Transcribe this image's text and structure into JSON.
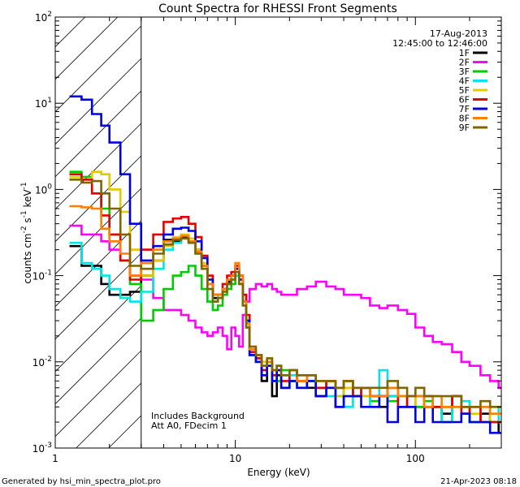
{
  "chart_data": {
    "type": "line",
    "title": "Count Spectra for RHESSI Front Segments",
    "xlabel": "Energy (keV)",
    "ylabel": "counts cm^-2 s^-1 keV^-1",
    "xscale": "log",
    "yscale": "log",
    "xlim": [
      1,
      300
    ],
    "ylim": [
      0.001,
      100
    ],
    "x_ticks": [
      {
        "value": 1,
        "label": "1"
      },
      {
        "value": 10,
        "label": "10"
      },
      {
        "value": 100,
        "label": "100"
      }
    ],
    "y_ticks": [
      {
        "value": 0.001,
        "base": "10",
        "exp": "-3"
      },
      {
        "value": 0.01,
        "base": "10",
        "exp": "-2"
      },
      {
        "value": 0.1,
        "base": "10",
        "exp": "-1"
      },
      {
        "value": 1,
        "base": "10",
        "exp": "0"
      },
      {
        "value": 10,
        "base": "10",
        "exp": "1"
      },
      {
        "value": 100,
        "base": "10",
        "exp": "2"
      }
    ],
    "hatched_region": {
      "from": 1,
      "to": 3
    },
    "date": "17-Aug-2013",
    "time_range": "12:45:00 to 12:46:00",
    "annotations": [
      "Includes Background",
      "Att A0, FDecim 1"
    ],
    "footer_left": "Generated by hsi_min_spectra_plot.pro",
    "footer_right": "21-Apr-2023 08:18",
    "series": [
      {
        "name": "1F",
        "color": "#000000",
        "x": [
          1.2,
          1.4,
          1.6,
          1.8,
          2.0,
          2.3,
          2.6,
          3.0,
          3.5,
          4.0,
          4.5,
          5.0,
          5.5,
          6.0,
          6.5,
          7.0,
          7.5,
          8.0,
          8.5,
          9.0,
          9.5,
          10.0,
          10.5,
          11.0,
          11.5,
          12.0,
          13.0,
          14.0,
          15.0,
          16.0,
          17.0,
          18.0,
          20.0,
          22.0,
          25.0,
          28.0,
          32.0,
          36.0,
          40.0,
          45.0,
          50.0,
          56.0,
          63.0,
          70.0,
          80.0,
          90.0,
          100.0,
          112.0,
          125.0,
          140.0,
          160.0,
          180.0,
          200.0,
          230.0,
          260.0,
          290.0
        ],
        "y": [
          0.22,
          0.13,
          0.13,
          0.08,
          0.06,
          0.06,
          0.065,
          0.1,
          0.15,
          0.26,
          0.25,
          0.28,
          0.25,
          0.2,
          0.13,
          0.08,
          0.055,
          0.055,
          0.07,
          0.085,
          0.1,
          0.12,
          0.1,
          0.06,
          0.03,
          0.012,
          0.01,
          0.006,
          0.01,
          0.004,
          0.007,
          0.005,
          0.006,
          0.006,
          0.005,
          0.004,
          0.006,
          0.003,
          0.005,
          0.004,
          0.005,
          0.004,
          0.003,
          0.004,
          0.004,
          0.003,
          0.003,
          0.004,
          0.003,
          0.0025,
          0.004,
          0.003,
          0.002,
          0.0025,
          0.002,
          0.0015
        ]
      },
      {
        "name": "2F",
        "color": "#ff00ff",
        "x": [
          1.2,
          1.4,
          1.6,
          1.8,
          2.0,
          2.3,
          2.6,
          3.0,
          3.5,
          4.0,
          4.5,
          5.0,
          5.5,
          6.0,
          6.5,
          7.0,
          7.5,
          8.0,
          8.5,
          9.0,
          9.5,
          10.0,
          10.5,
          11.0,
          11.5,
          12.0,
          13.0,
          14.0,
          15.0,
          16.0,
          17.0,
          18.0,
          20.0,
          22.0,
          25.0,
          28.0,
          32.0,
          36.0,
          40.0,
          45.0,
          50.0,
          56.0,
          63.0,
          70.0,
          80.0,
          90.0,
          100.0,
          112.0,
          125.0,
          140.0,
          160.0,
          180.0,
          200.0,
          230.0,
          260.0,
          290.0
        ],
        "y": [
          0.38,
          0.3,
          0.3,
          0.25,
          0.2,
          0.15,
          0.1,
          0.09,
          0.055,
          0.04,
          0.04,
          0.035,
          0.03,
          0.025,
          0.022,
          0.02,
          0.022,
          0.025,
          0.02,
          0.014,
          0.025,
          0.02,
          0.015,
          0.035,
          0.05,
          0.07,
          0.08,
          0.075,
          0.08,
          0.07,
          0.065,
          0.06,
          0.06,
          0.07,
          0.075,
          0.085,
          0.075,
          0.07,
          0.06,
          0.06,
          0.055,
          0.045,
          0.042,
          0.045,
          0.04,
          0.036,
          0.025,
          0.02,
          0.017,
          0.016,
          0.013,
          0.01,
          0.009,
          0.007,
          0.006,
          0.005
        ]
      },
      {
        "name": "3F",
        "color": "#00cc00",
        "x": [
          1.2,
          1.4,
          1.6,
          1.8,
          2.0,
          2.3,
          2.6,
          3.0,
          3.5,
          4.0,
          4.5,
          5.0,
          5.5,
          6.0,
          6.5,
          7.0,
          7.5,
          8.0,
          8.5,
          9.0,
          9.5,
          10.0,
          10.5,
          11.0,
          11.5,
          12.0,
          13.0,
          14.0,
          15.0,
          16.0,
          17.0,
          18.0,
          20.0,
          22.0,
          25.0,
          28.0,
          32.0,
          36.0,
          40.0,
          45.0,
          50.0,
          56.0,
          63.0,
          70.0,
          80.0,
          90.0,
          100.0,
          112.0,
          125.0,
          140.0,
          160.0,
          180.0,
          200.0,
          230.0,
          260.0,
          290.0
        ],
        "y": [
          1.6,
          1.4,
          0.9,
          0.6,
          0.3,
          0.15,
          0.08,
          0.03,
          0.04,
          0.07,
          0.1,
          0.11,
          0.13,
          0.1,
          0.07,
          0.05,
          0.04,
          0.045,
          0.06,
          0.07,
          0.08,
          0.1,
          0.08,
          0.05,
          0.025,
          0.014,
          0.011,
          0.009,
          0.01,
          0.007,
          0.006,
          0.008,
          0.006,
          0.007,
          0.006,
          0.005,
          0.005,
          0.004,
          0.006,
          0.004,
          0.005,
          0.0035,
          0.004,
          0.0035,
          0.003,
          0.004,
          0.003,
          0.0035,
          0.003,
          0.002,
          0.003,
          0.0025,
          0.002,
          0.003,
          0.002,
          0.002
        ]
      },
      {
        "name": "4F",
        "color": "#00e5e5",
        "x": [
          1.2,
          1.4,
          1.6,
          1.8,
          2.0,
          2.3,
          2.6,
          3.0,
          3.5,
          4.0,
          4.5,
          5.0,
          5.5,
          6.0,
          6.5,
          7.0,
          7.5,
          8.0,
          8.5,
          9.0,
          9.5,
          10.0,
          10.5,
          11.0,
          11.5,
          12.0,
          13.0,
          14.0,
          15.0,
          16.0,
          17.0,
          18.0,
          20.0,
          22.0,
          25.0,
          28.0,
          32.0,
          36.0,
          40.0,
          45.0,
          50.0,
          56.0,
          63.0,
          70.0,
          80.0,
          90.0,
          100.0,
          112.0,
          125.0,
          140.0,
          160.0,
          180.0,
          200.0,
          230.0,
          260.0,
          290.0
        ],
        "y": [
          0.24,
          0.14,
          0.12,
          0.1,
          0.07,
          0.055,
          0.05,
          0.065,
          0.12,
          0.2,
          0.24,
          0.27,
          0.25,
          0.18,
          0.12,
          0.07,
          0.05,
          0.06,
          0.07,
          0.08,
          0.09,
          0.1,
          0.09,
          0.05,
          0.025,
          0.012,
          0.01,
          0.008,
          0.009,
          0.006,
          0.008,
          0.005,
          0.007,
          0.005,
          0.006,
          0.005,
          0.004,
          0.005,
          0.003,
          0.005,
          0.004,
          0.003,
          0.008,
          0.004,
          0.004,
          0.003,
          0.005,
          0.003,
          0.003,
          0.002,
          0.003,
          0.0035,
          0.002,
          0.002,
          0.003,
          0.002
        ]
      },
      {
        "name": "5F",
        "color": "#e5c800",
        "x": [
          1.2,
          1.4,
          1.6,
          1.8,
          2.0,
          2.3,
          2.6,
          3.0,
          3.5,
          4.0,
          4.5,
          5.0,
          5.5,
          6.0,
          6.5,
          7.0,
          7.5,
          8.0,
          8.5,
          9.0,
          9.5,
          10.0,
          10.5,
          11.0,
          11.5,
          12.0,
          13.0,
          14.0,
          15.0,
          16.0,
          17.0,
          18.0,
          20.0,
          22.0,
          25.0,
          28.0,
          32.0,
          36.0,
          40.0,
          45.0,
          50.0,
          56.0,
          63.0,
          70.0,
          80.0,
          90.0,
          100.0,
          112.0,
          125.0,
          140.0,
          160.0,
          180.0,
          200.0,
          230.0,
          260.0,
          290.0
        ],
        "y": [
          1.4,
          1.3,
          1.6,
          1.5,
          1.0,
          0.55,
          0.2,
          0.1,
          0.15,
          0.22,
          0.28,
          0.3,
          0.27,
          0.2,
          0.14,
          0.08,
          0.06,
          0.06,
          0.07,
          0.09,
          0.1,
          0.11,
          0.09,
          0.05,
          0.03,
          0.015,
          0.012,
          0.01,
          0.011,
          0.008,
          0.009,
          0.007,
          0.008,
          0.006,
          0.007,
          0.005,
          0.006,
          0.004,
          0.005,
          0.005,
          0.004,
          0.004,
          0.004,
          0.005,
          0.004,
          0.003,
          0.004,
          0.003,
          0.003,
          0.003,
          0.003,
          0.003,
          0.0025,
          0.003,
          0.002,
          0.002
        ]
      },
      {
        "name": "6F",
        "color": "#e50000",
        "x": [
          1.2,
          1.4,
          1.6,
          1.8,
          2.0,
          2.3,
          2.6,
          3.0,
          3.5,
          4.0,
          4.5,
          5.0,
          5.5,
          6.0,
          6.5,
          7.0,
          7.5,
          8.0,
          8.5,
          9.0,
          9.5,
          10.0,
          10.5,
          11.0,
          11.5,
          12.0,
          13.0,
          14.0,
          15.0,
          16.0,
          17.0,
          18.0,
          20.0,
          22.0,
          25.0,
          28.0,
          32.0,
          36.0,
          40.0,
          45.0,
          50.0,
          56.0,
          63.0,
          70.0,
          80.0,
          90.0,
          100.0,
          112.0,
          125.0,
          140.0,
          160.0,
          180.0,
          200.0,
          230.0,
          260.0,
          290.0
        ],
        "y": [
          1.5,
          1.3,
          0.9,
          0.5,
          0.3,
          0.15,
          0.09,
          0.2,
          0.3,
          0.42,
          0.46,
          0.48,
          0.4,
          0.28,
          0.17,
          0.1,
          0.06,
          0.06,
          0.08,
          0.1,
          0.11,
          0.13,
          0.1,
          0.06,
          0.035,
          0.013,
          0.011,
          0.008,
          0.01,
          0.007,
          0.009,
          0.006,
          0.008,
          0.006,
          0.007,
          0.005,
          0.006,
          0.005,
          0.006,
          0.004,
          0.005,
          0.004,
          0.004,
          0.005,
          0.003,
          0.004,
          0.004,
          0.003,
          0.003,
          0.003,
          0.004,
          0.0025,
          0.003,
          0.002,
          0.002,
          0.002
        ]
      },
      {
        "name": "7F",
        "color": "#0000e5",
        "x": [
          1.2,
          1.4,
          1.6,
          1.8,
          2.0,
          2.3,
          2.6,
          3.0,
          3.5,
          4.0,
          4.5,
          5.0,
          5.5,
          6.0,
          6.5,
          7.0,
          7.5,
          8.0,
          8.5,
          9.0,
          9.5,
          10.0,
          10.5,
          11.0,
          11.5,
          12.0,
          13.0,
          14.0,
          15.0,
          16.0,
          17.0,
          18.0,
          20.0,
          22.0,
          25.0,
          28.0,
          32.0,
          36.0,
          40.0,
          45.0,
          50.0,
          56.0,
          63.0,
          70.0,
          80.0,
          90.0,
          100.0,
          112.0,
          125.0,
          140.0,
          160.0,
          180.0,
          200.0,
          230.0,
          260.0,
          290.0
        ],
        "y": [
          12.0,
          11.0,
          7.5,
          5.5,
          3.5,
          1.5,
          0.4,
          0.15,
          0.22,
          0.3,
          0.35,
          0.36,
          0.33,
          0.25,
          0.16,
          0.09,
          0.06,
          0.06,
          0.07,
          0.08,
          0.1,
          0.12,
          0.09,
          0.05,
          0.03,
          0.012,
          0.01,
          0.007,
          0.009,
          0.006,
          0.008,
          0.005,
          0.006,
          0.005,
          0.006,
          0.004,
          0.005,
          0.003,
          0.004,
          0.004,
          0.003,
          0.003,
          0.004,
          0.002,
          0.003,
          0.003,
          0.002,
          0.003,
          0.002,
          0.002,
          0.002,
          0.0025,
          0.002,
          0.002,
          0.0015,
          0.0015
        ]
      },
      {
        "name": "8F",
        "color": "#ff8000",
        "x": [
          1.2,
          1.4,
          1.6,
          1.8,
          2.0,
          2.3,
          2.6,
          3.0,
          3.5,
          4.0,
          4.5,
          5.0,
          5.5,
          6.0,
          6.5,
          7.0,
          7.5,
          8.0,
          8.5,
          9.0,
          9.5,
          10.0,
          10.5,
          11.0,
          11.5,
          12.0,
          13.0,
          14.0,
          15.0,
          16.0,
          17.0,
          18.0,
          20.0,
          22.0,
          25.0,
          28.0,
          32.0,
          36.0,
          40.0,
          45.0,
          50.0,
          56.0,
          63.0,
          70.0,
          80.0,
          90.0,
          100.0,
          112.0,
          125.0,
          140.0,
          160.0,
          180.0,
          200.0,
          230.0,
          260.0,
          290.0
        ],
        "y": [
          0.64,
          0.62,
          0.6,
          0.35,
          0.25,
          0.18,
          0.1,
          0.14,
          0.2,
          0.25,
          0.27,
          0.29,
          0.25,
          0.19,
          0.13,
          0.08,
          0.06,
          0.06,
          0.07,
          0.09,
          0.1,
          0.14,
          0.1,
          0.05,
          0.028,
          0.014,
          0.012,
          0.009,
          0.01,
          0.008,
          0.009,
          0.007,
          0.008,
          0.006,
          0.007,
          0.006,
          0.006,
          0.005,
          0.006,
          0.005,
          0.005,
          0.004,
          0.004,
          0.005,
          0.004,
          0.004,
          0.004,
          0.003,
          0.004,
          0.003,
          0.003,
          0.003,
          0.003,
          0.003,
          0.0025,
          0.0025
        ]
      },
      {
        "name": "9F",
        "color": "#806600",
        "x": [
          1.2,
          1.4,
          1.6,
          1.8,
          2.0,
          2.3,
          2.6,
          3.0,
          3.5,
          4.0,
          4.5,
          5.0,
          5.5,
          6.0,
          6.5,
          7.0,
          7.5,
          8.0,
          8.5,
          9.0,
          9.5,
          10.0,
          10.5,
          11.0,
          11.5,
          12.0,
          13.0,
          14.0,
          15.0,
          16.0,
          17.0,
          18.0,
          20.0,
          22.0,
          25.0,
          28.0,
          32.0,
          36.0,
          40.0,
          45.0,
          50.0,
          56.0,
          63.0,
          70.0,
          80.0,
          90.0,
          100.0,
          112.0,
          125.0,
          140.0,
          160.0,
          180.0,
          200.0,
          230.0,
          260.0,
          290.0
        ],
        "y": [
          1.3,
          1.2,
          1.25,
          0.9,
          0.6,
          0.3,
          0.13,
          0.12,
          0.18,
          0.23,
          0.26,
          0.27,
          0.24,
          0.18,
          0.12,
          0.07,
          0.05,
          0.055,
          0.065,
          0.08,
          0.09,
          0.11,
          0.08,
          0.045,
          0.025,
          0.015,
          0.012,
          0.009,
          0.011,
          0.008,
          0.009,
          0.007,
          0.008,
          0.007,
          0.007,
          0.006,
          0.006,
          0.005,
          0.006,
          0.005,
          0.005,
          0.005,
          0.005,
          0.006,
          0.005,
          0.004,
          0.005,
          0.004,
          0.004,
          0.004,
          0.004,
          0.003,
          0.003,
          0.0035,
          0.003,
          0.003
        ]
      }
    ]
  }
}
